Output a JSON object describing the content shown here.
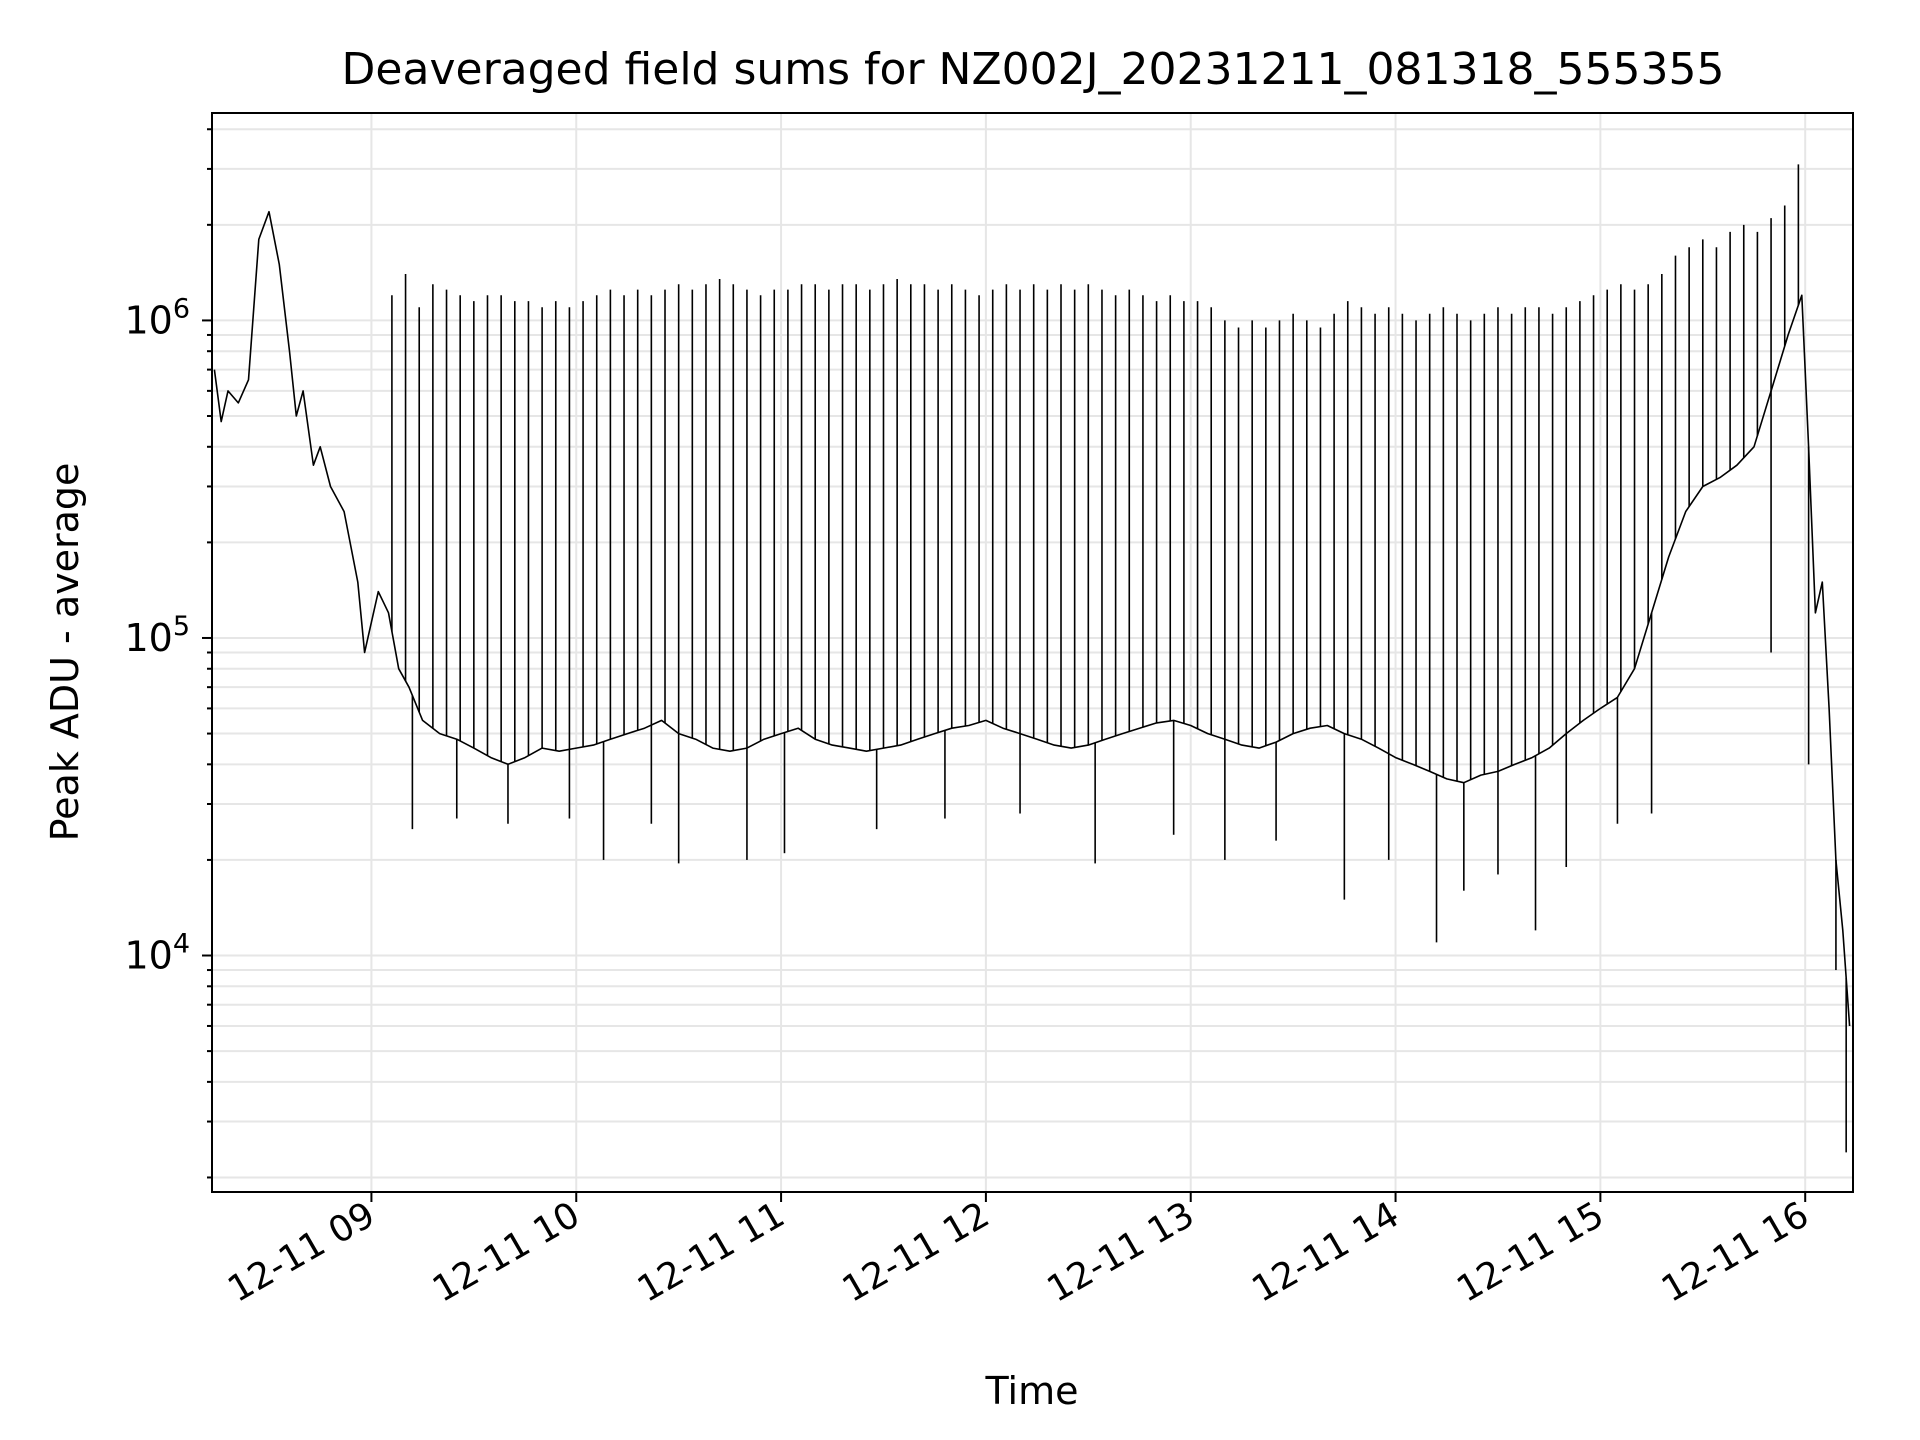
{
  "chart_data": {
    "type": "line",
    "title": "Deaveraged field sums for NZ002J_20231211_081318_555355",
    "xlabel": "Time",
    "ylabel": "Peak ADU - average",
    "xlim": [
      "2023-12-11T08:13:18",
      "2023-12-11T16:14:00"
    ],
    "ylim": [
      1800,
      4500000
    ],
    "yscale": "log",
    "grid": true,
    "line_color": "#000000",
    "grid_color": "#e6e6e6",
    "x_ticks": [
      {
        "value": "2023-12-11T09:00:00",
        "label": "12-11 09"
      },
      {
        "value": "2023-12-11T10:00:00",
        "label": "12-11 10"
      },
      {
        "value": "2023-12-11T11:00:00",
        "label": "12-11 11"
      },
      {
        "value": "2023-12-11T12:00:00",
        "label": "12-11 12"
      },
      {
        "value": "2023-12-11T13:00:00",
        "label": "12-11 13"
      },
      {
        "value": "2023-12-11T14:00:00",
        "label": "12-11 14"
      },
      {
        "value": "2023-12-11T15:00:00",
        "label": "12-11 15"
      },
      {
        "value": "2023-12-11T16:00:00",
        "label": "12-11 16"
      }
    ],
    "y_ticks": [
      {
        "value": 10000,
        "base": "10",
        "exp": "4"
      },
      {
        "value": 100000,
        "base": "10",
        "exp": "5"
      },
      {
        "value": 1000000,
        "base": "10",
        "exp": "6"
      }
    ],
    "series": [
      {
        "x": [
          "2023-12-11T08:14:00",
          "2023-12-11T08:16:00",
          "2023-12-11T08:18:00",
          "2023-12-11T08:21:00",
          "2023-12-11T08:24:00",
          "2023-12-11T08:27:00",
          "2023-12-11T08:30:00",
          "2023-12-11T08:33:00",
          "2023-12-11T08:36:00",
          "2023-12-11T08:38:00",
          "2023-12-11T08:40:00",
          "2023-12-11T08:43:00",
          "2023-12-11T08:45:00",
          "2023-12-11T08:48:00",
          "2023-12-11T08:52:00",
          "2023-12-11T08:56:00",
          "2023-12-11T08:58:00",
          "2023-12-11T09:02:00",
          "2023-12-11T09:05:00",
          "2023-12-11T09:08:00",
          "2023-12-11T09:11:00",
          "2023-12-11T09:15:00",
          "2023-12-11T09:20:00",
          "2023-12-11T09:25:00",
          "2023-12-11T09:30:00",
          "2023-12-11T09:35:00",
          "2023-12-11T09:40:00",
          "2023-12-11T09:45:00",
          "2023-12-11T09:50:00",
          "2023-12-11T09:55:00",
          "2023-12-11T10:00:00",
          "2023-12-11T10:05:00",
          "2023-12-11T10:10:00",
          "2023-12-11T10:15:00",
          "2023-12-11T10:20:00",
          "2023-12-11T10:25:00",
          "2023-12-11T10:30:00",
          "2023-12-11T10:35:00",
          "2023-12-11T10:40:00",
          "2023-12-11T10:45:00",
          "2023-12-11T10:50:00",
          "2023-12-11T10:55:00",
          "2023-12-11T11:00:00",
          "2023-12-11T11:05:00",
          "2023-12-11T11:10:00",
          "2023-12-11T11:15:00",
          "2023-12-11T11:20:00",
          "2023-12-11T11:25:00",
          "2023-12-11T11:30:00",
          "2023-12-11T11:35:00",
          "2023-12-11T11:40:00",
          "2023-12-11T11:45:00",
          "2023-12-11T11:50:00",
          "2023-12-11T11:55:00",
          "2023-12-11T12:00:00",
          "2023-12-11T12:05:00",
          "2023-12-11T12:10:00",
          "2023-12-11T12:15:00",
          "2023-12-11T12:20:00",
          "2023-12-11T12:25:00",
          "2023-12-11T12:30:00",
          "2023-12-11T12:35:00",
          "2023-12-11T12:40:00",
          "2023-12-11T12:45:00",
          "2023-12-11T12:50:00",
          "2023-12-11T12:55:00",
          "2023-12-11T13:00:00",
          "2023-12-11T13:05:00",
          "2023-12-11T13:10:00",
          "2023-12-11T13:15:00",
          "2023-12-11T13:20:00",
          "2023-12-11T13:25:00",
          "2023-12-11T13:30:00",
          "2023-12-11T13:35:00",
          "2023-12-11T13:40:00",
          "2023-12-11T13:45:00",
          "2023-12-11T13:50:00",
          "2023-12-11T13:55:00",
          "2023-12-11T14:00:00",
          "2023-12-11T14:05:00",
          "2023-12-11T14:10:00",
          "2023-12-11T14:15:00",
          "2023-12-11T14:20:00",
          "2023-12-11T14:25:00",
          "2023-12-11T14:30:00",
          "2023-12-11T14:35:00",
          "2023-12-11T14:40:00",
          "2023-12-11T14:45:00",
          "2023-12-11T14:50:00",
          "2023-12-11T14:55:00",
          "2023-12-11T15:00:00",
          "2023-12-11T15:05:00",
          "2023-12-11T15:10:00",
          "2023-12-11T15:15:00",
          "2023-12-11T15:20:00",
          "2023-12-11T15:25:00",
          "2023-12-11T15:30:00",
          "2023-12-11T15:35:00",
          "2023-12-11T15:40:00",
          "2023-12-11T15:45:00",
          "2023-12-11T15:50:00",
          "2023-12-11T15:55:00",
          "2023-12-11T15:59:00",
          "2023-12-11T16:01:00",
          "2023-12-11T16:03:00",
          "2023-12-11T16:05:00",
          "2023-12-11T16:07:00",
          "2023-12-11T16:09:00",
          "2023-12-11T16:11:00",
          "2023-12-11T16:13:00"
        ],
        "y": [
          700000,
          480000,
          600000,
          550000,
          650000,
          1800000,
          2200000,
          1500000,
          800000,
          500000,
          600000,
          350000,
          400000,
          300000,
          250000,
          150000,
          90000,
          140000,
          120000,
          80000,
          70000,
          55000,
          50000,
          48000,
          45000,
          42000,
          40000,
          42000,
          45000,
          44000,
          45000,
          46000,
          48000,
          50000,
          52000,
          55000,
          50000,
          48000,
          45000,
          44000,
          45000,
          48000,
          50000,
          52000,
          48000,
          46000,
          45000,
          44000,
          45000,
          46000,
          48000,
          50000,
          52000,
          53000,
          55000,
          52000,
          50000,
          48000,
          46000,
          45000,
          46000,
          48000,
          50000,
          52000,
          54000,
          55000,
          53000,
          50000,
          48000,
          46000,
          45000,
          47000,
          50000,
          52000,
          53000,
          50000,
          48000,
          45000,
          42000,
          40000,
          38000,
          36000,
          35000,
          37000,
          38000,
          40000,
          42000,
          45000,
          50000,
          55000,
          60000,
          65000,
          80000,
          120000,
          180000,
          250000,
          300000,
          320000,
          350000,
          400000,
          600000,
          900000,
          1200000,
          400000,
          120000,
          150000,
          60000,
          20000,
          12000,
          6000
        ]
      }
    ],
    "spikes": [
      {
        "x": "2023-12-11T09:06:00",
        "y": 1200000
      },
      {
        "x": "2023-12-11T09:10:00",
        "y": 1400000
      },
      {
        "x": "2023-12-11T09:14:00",
        "y": 1100000
      },
      {
        "x": "2023-12-11T09:18:00",
        "y": 1300000
      },
      {
        "x": "2023-12-11T09:22:00",
        "y": 1250000
      },
      {
        "x": "2023-12-11T09:26:00",
        "y": 1200000
      },
      {
        "x": "2023-12-11T09:30:00",
        "y": 1150000
      },
      {
        "x": "2023-12-11T09:34:00",
        "y": 1200000
      },
      {
        "x": "2023-12-11T09:38:00",
        "y": 1200000
      },
      {
        "x": "2023-12-11T09:42:00",
        "y": 1150000
      },
      {
        "x": "2023-12-11T09:46:00",
        "y": 1150000
      },
      {
        "x": "2023-12-11T09:50:00",
        "y": 1100000
      },
      {
        "x": "2023-12-11T09:54:00",
        "y": 1150000
      },
      {
        "x": "2023-12-11T09:58:00",
        "y": 1100000
      },
      {
        "x": "2023-12-11T10:02:00",
        "y": 1150000
      },
      {
        "x": "2023-12-11T10:06:00",
        "y": 1200000
      },
      {
        "x": "2023-12-11T10:10:00",
        "y": 1250000
      },
      {
        "x": "2023-12-11T10:14:00",
        "y": 1200000
      },
      {
        "x": "2023-12-11T10:18:00",
        "y": 1250000
      },
      {
        "x": "2023-12-11T10:22:00",
        "y": 1200000
      },
      {
        "x": "2023-12-11T10:26:00",
        "y": 1250000
      },
      {
        "x": "2023-12-11T10:30:00",
        "y": 1300000
      },
      {
        "x": "2023-12-11T10:34:00",
        "y": 1250000
      },
      {
        "x": "2023-12-11T10:38:00",
        "y": 1300000
      },
      {
        "x": "2023-12-11T10:42:00",
        "y": 1350000
      },
      {
        "x": "2023-12-11T10:46:00",
        "y": 1300000
      },
      {
        "x": "2023-12-11T10:50:00",
        "y": 1250000
      },
      {
        "x": "2023-12-11T10:54:00",
        "y": 1200000
      },
      {
        "x": "2023-12-11T10:58:00",
        "y": 1250000
      },
      {
        "x": "2023-12-11T11:02:00",
        "y": 1250000
      },
      {
        "x": "2023-12-11T11:06:00",
        "y": 1300000
      },
      {
        "x": "2023-12-11T11:10:00",
        "y": 1300000
      },
      {
        "x": "2023-12-11T11:14:00",
        "y": 1250000
      },
      {
        "x": "2023-12-11T11:18:00",
        "y": 1300000
      },
      {
        "x": "2023-12-11T11:22:00",
        "y": 1300000
      },
      {
        "x": "2023-12-11T11:26:00",
        "y": 1250000
      },
      {
        "x": "2023-12-11T11:30:00",
        "y": 1300000
      },
      {
        "x": "2023-12-11T11:34:00",
        "y": 1350000
      },
      {
        "x": "2023-12-11T11:38:00",
        "y": 1300000
      },
      {
        "x": "2023-12-11T11:42:00",
        "y": 1300000
      },
      {
        "x": "2023-12-11T11:46:00",
        "y": 1250000
      },
      {
        "x": "2023-12-11T11:50:00",
        "y": 1300000
      },
      {
        "x": "2023-12-11T11:54:00",
        "y": 1250000
      },
      {
        "x": "2023-12-11T11:58:00",
        "y": 1200000
      },
      {
        "x": "2023-12-11T12:02:00",
        "y": 1250000
      },
      {
        "x": "2023-12-11T12:06:00",
        "y": 1300000
      },
      {
        "x": "2023-12-11T12:10:00",
        "y": 1250000
      },
      {
        "x": "2023-12-11T12:14:00",
        "y": 1300000
      },
      {
        "x": "2023-12-11T12:18:00",
        "y": 1250000
      },
      {
        "x": "2023-12-11T12:22:00",
        "y": 1300000
      },
      {
        "x": "2023-12-11T12:26:00",
        "y": 1250000
      },
      {
        "x": "2023-12-11T12:30:00",
        "y": 1300000
      },
      {
        "x": "2023-12-11T12:34:00",
        "y": 1250000
      },
      {
        "x": "2023-12-11T12:38:00",
        "y": 1200000
      },
      {
        "x": "2023-12-11T12:42:00",
        "y": 1250000
      },
      {
        "x": "2023-12-11T12:46:00",
        "y": 1200000
      },
      {
        "x": "2023-12-11T12:50:00",
        "y": 1150000
      },
      {
        "x": "2023-12-11T12:54:00",
        "y": 1200000
      },
      {
        "x": "2023-12-11T12:58:00",
        "y": 1150000
      },
      {
        "x": "2023-12-11T13:02:00",
        "y": 1150000
      },
      {
        "x": "2023-12-11T13:06:00",
        "y": 1100000
      },
      {
        "x": "2023-12-11T13:10:00",
        "y": 1000000
      },
      {
        "x": "2023-12-11T13:14:00",
        "y": 950000
      },
      {
        "x": "2023-12-11T13:18:00",
        "y": 1000000
      },
      {
        "x": "2023-12-11T13:22:00",
        "y": 950000
      },
      {
        "x": "2023-12-11T13:26:00",
        "y": 1000000
      },
      {
        "x": "2023-12-11T13:30:00",
        "y": 1050000
      },
      {
        "x": "2023-12-11T13:34:00",
        "y": 1000000
      },
      {
        "x": "2023-12-11T13:38:00",
        "y": 950000
      },
      {
        "x": "2023-12-11T13:42:00",
        "y": 1050000
      },
      {
        "x": "2023-12-11T13:46:00",
        "y": 1150000
      },
      {
        "x": "2023-12-11T13:50:00",
        "y": 1100000
      },
      {
        "x": "2023-12-11T13:54:00",
        "y": 1050000
      },
      {
        "x": "2023-12-11T13:58:00",
        "y": 1100000
      },
      {
        "x": "2023-12-11T14:02:00",
        "y": 1050000
      },
      {
        "x": "2023-12-11T14:06:00",
        "y": 1000000
      },
      {
        "x": "2023-12-11T14:10:00",
        "y": 1050000
      },
      {
        "x": "2023-12-11T14:14:00",
        "y": 1100000
      },
      {
        "x": "2023-12-11T14:18:00",
        "y": 1050000
      },
      {
        "x": "2023-12-11T14:22:00",
        "y": 1000000
      },
      {
        "x": "2023-12-11T14:26:00",
        "y": 1050000
      },
      {
        "x": "2023-12-11T14:30:00",
        "y": 1100000
      },
      {
        "x": "2023-12-11T14:34:00",
        "y": 1050000
      },
      {
        "x": "2023-12-11T14:38:00",
        "y": 1100000
      },
      {
        "x": "2023-12-11T14:42:00",
        "y": 1100000
      },
      {
        "x": "2023-12-11T14:46:00",
        "y": 1050000
      },
      {
        "x": "2023-12-11T14:50:00",
        "y": 1100000
      },
      {
        "x": "2023-12-11T14:54:00",
        "y": 1150000
      },
      {
        "x": "2023-12-11T14:58:00",
        "y": 1200000
      },
      {
        "x": "2023-12-11T15:02:00",
        "y": 1250000
      },
      {
        "x": "2023-12-11T15:06:00",
        "y": 1300000
      },
      {
        "x": "2023-12-11T15:10:00",
        "y": 1250000
      },
      {
        "x": "2023-12-11T15:14:00",
        "y": 1300000
      },
      {
        "x": "2023-12-11T15:18:00",
        "y": 1400000
      },
      {
        "x": "2023-12-11T15:22:00",
        "y": 1600000
      },
      {
        "x": "2023-12-11T15:26:00",
        "y": 1700000
      },
      {
        "x": "2023-12-11T15:30:00",
        "y": 1800000
      },
      {
        "x": "2023-12-11T15:34:00",
        "y": 1700000
      },
      {
        "x": "2023-12-11T15:38:00",
        "y": 1900000
      },
      {
        "x": "2023-12-11T15:42:00",
        "y": 2000000
      },
      {
        "x": "2023-12-11T15:46:00",
        "y": 1900000
      },
      {
        "x": "2023-12-11T15:50:00",
        "y": 2100000
      },
      {
        "x": "2023-12-11T15:54:00",
        "y": 2300000
      },
      {
        "x": "2023-12-11T15:58:00",
        "y": 3100000
      }
    ],
    "dips": [
      {
        "x": "2023-12-11T09:12:00",
        "y": 25000
      },
      {
        "x": "2023-12-11T09:25:00",
        "y": 27000
      },
      {
        "x": "2023-12-11T09:40:00",
        "y": 26000
      },
      {
        "x": "2023-12-11T09:58:00",
        "y": 27000
      },
      {
        "x": "2023-12-11T10:08:00",
        "y": 20000
      },
      {
        "x": "2023-12-11T10:22:00",
        "y": 26000
      },
      {
        "x": "2023-12-11T10:30:00",
        "y": 19500
      },
      {
        "x": "2023-12-11T10:50:00",
        "y": 20000
      },
      {
        "x": "2023-12-11T11:01:00",
        "y": 21000
      },
      {
        "x": "2023-12-11T11:28:00",
        "y": 25000
      },
      {
        "x": "2023-12-11T11:48:00",
        "y": 27000
      },
      {
        "x": "2023-12-11T12:10:00",
        "y": 28000
      },
      {
        "x": "2023-12-11T12:32:00",
        "y": 19500
      },
      {
        "x": "2023-12-11T12:55:00",
        "y": 24000
      },
      {
        "x": "2023-12-11T13:10:00",
        "y": 20000
      },
      {
        "x": "2023-12-11T13:25:00",
        "y": 23000
      },
      {
        "x": "2023-12-11T13:45:00",
        "y": 15000
      },
      {
        "x": "2023-12-11T13:58:00",
        "y": 20000
      },
      {
        "x": "2023-12-11T14:12:00",
        "y": 11000
      },
      {
        "x": "2023-12-11T14:20:00",
        "y": 16000
      },
      {
        "x": "2023-12-11T14:30:00",
        "y": 18000
      },
      {
        "x": "2023-12-11T14:41:00",
        "y": 12000
      },
      {
        "x": "2023-12-11T14:50:00",
        "y": 19000
      },
      {
        "x": "2023-12-11T15:05:00",
        "y": 26000
      },
      {
        "x": "2023-12-11T15:15:00",
        "y": 28000
      },
      {
        "x": "2023-12-11T15:50:00",
        "y": 90000
      },
      {
        "x": "2023-12-11T16:01:00",
        "y": 40000
      },
      {
        "x": "2023-12-11T16:09:00",
        "y": 9000
      },
      {
        "x": "2023-12-11T16:12:00",
        "y": 2400
      }
    ]
  }
}
